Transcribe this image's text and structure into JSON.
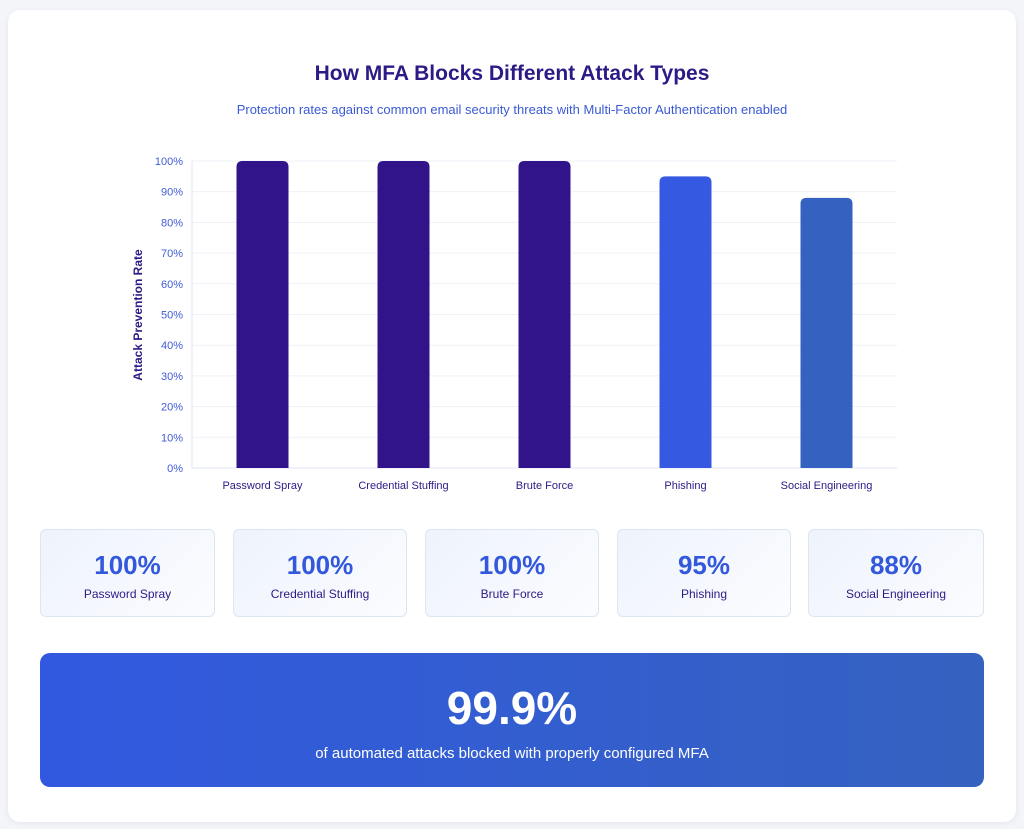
{
  "title": "How MFA Blocks Different Attack Types",
  "subtitle": "Protection rates against common email security threats with Multi-Factor Authentication enabled",
  "chart_data": {
    "type": "bar",
    "categories": [
      "Password Spray",
      "Credential Stuffing",
      "Brute Force",
      "Phishing",
      "Social Engineering"
    ],
    "values": [
      100,
      100,
      100,
      95,
      88
    ],
    "colors": [
      "#31148a",
      "#31148a",
      "#31148a",
      "#3559e0",
      "#3562c0"
    ],
    "ylabel": "Attack Prevention Rate",
    "xlabel": "",
    "ylim": [
      0,
      100
    ],
    "yticks": [
      "0%",
      "10%",
      "20%",
      "30%",
      "40%",
      "50%",
      "60%",
      "70%",
      "80%",
      "90%",
      "100%"
    ],
    "grid": true
  },
  "stats": [
    {
      "value": "100%",
      "label": "Password Spray"
    },
    {
      "value": "100%",
      "label": "Credential Stuffing"
    },
    {
      "value": "100%",
      "label": "Brute Force"
    },
    {
      "value": "95%",
      "label": "Phishing"
    },
    {
      "value": "88%",
      "label": "Social Engineering"
    }
  ],
  "banner": {
    "value": "99.9%",
    "text": "of automated attacks blocked with properly configured MFA"
  }
}
